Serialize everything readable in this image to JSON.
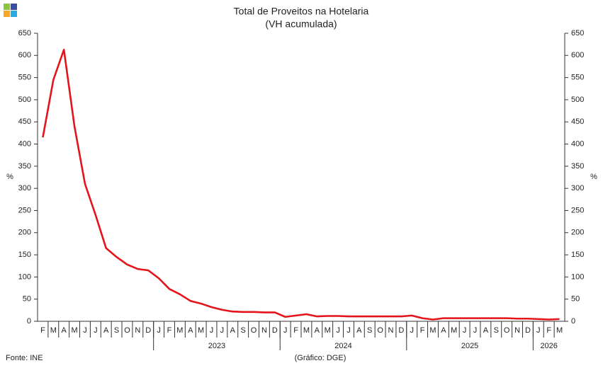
{
  "chart_data": {
    "type": "line",
    "title": "Total de Proveitos na Hotelaria",
    "subtitle": "(VH acumulada)",
    "y_label": "%",
    "y2_label": "%",
    "categories": [
      "F",
      "M",
      "A",
      "M",
      "J",
      "J",
      "A",
      "S",
      "O",
      "N",
      "D",
      "J",
      "F",
      "M",
      "A",
      "M",
      "J",
      "J",
      "A",
      "S",
      "O",
      "N",
      "D",
      "J",
      "F",
      "M",
      "A",
      "M",
      "J",
      "J",
      "A",
      "S",
      "O",
      "N",
      "D",
      "J",
      "F",
      "M",
      "A",
      "M",
      "J",
      "J",
      "A",
      "S",
      "O",
      "N",
      "D",
      "J",
      "F",
      "M"
    ],
    "year_labels": [
      "2023",
      "2024",
      "2025",
      "2026"
    ],
    "series": [
      {
        "name": "Total de Proveitos",
        "color": "#e3141b",
        "values": [
          415,
          545,
          613,
          440,
          310,
          240,
          165,
          145,
          128,
          118,
          115,
          97,
          73,
          61,
          46,
          40,
          32,
          26,
          22,
          21,
          21,
          20,
          20,
          10,
          13,
          16,
          11,
          12,
          12,
          11,
          11,
          11,
          11,
          11,
          11,
          13,
          7,
          4,
          7,
          7,
          7,
          7,
          7,
          7,
          7,
          6,
          6,
          5,
          4,
          5
        ]
      }
    ],
    "ylim": [
      0,
      650
    ],
    "yticks": [
      0,
      50,
      100,
      150,
      200,
      250,
      300,
      350,
      400,
      450,
      500,
      550,
      600,
      650
    ],
    "y2lim": [
      0,
      650
    ],
    "y2ticks": [
      0,
      50,
      100,
      150,
      200,
      250,
      300,
      350,
      400,
      450,
      500,
      550,
      600,
      650
    ],
    "grid": false,
    "source": "Fonte: INE",
    "credit": "(Gráfico: DGE)"
  }
}
